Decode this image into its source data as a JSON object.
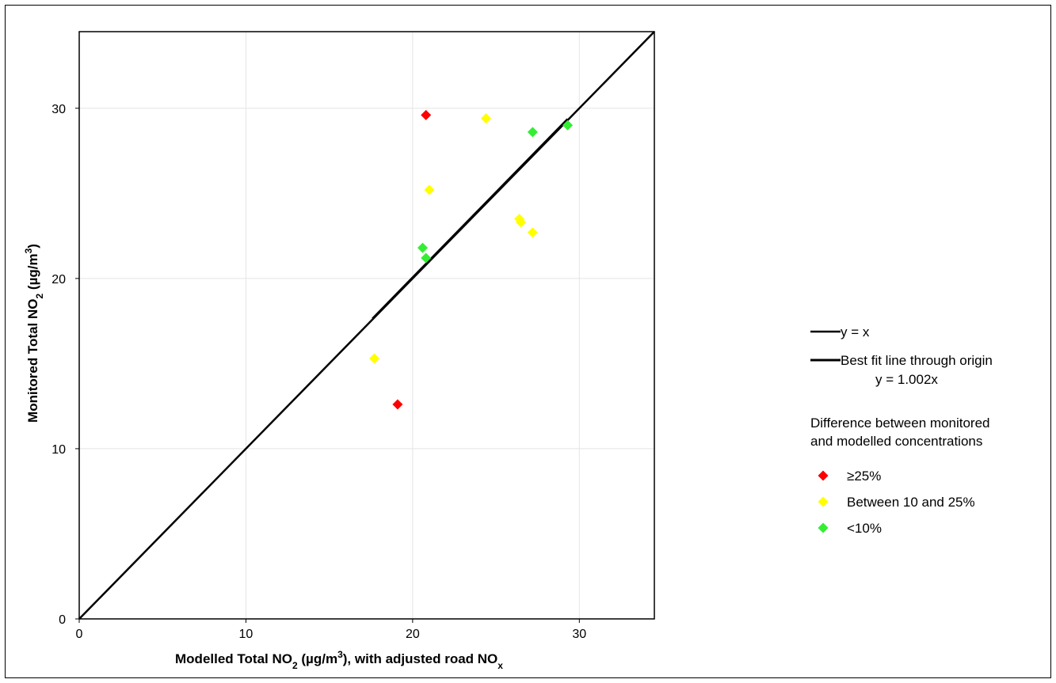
{
  "chart_data": {
    "type": "scatter",
    "title": "",
    "xlabel": {
      "main": "Modelled Total NO",
      "sub": "2",
      "mid": " (µg/m",
      "sup": "3",
      "tail": "), with adjusted road NO",
      "sub2": "x"
    },
    "ylabel": {
      "main": "Monitored Total NO",
      "sub": "2",
      "mid": " (µg/m",
      "sup": "3",
      "tail": ")"
    },
    "xlim": [
      0,
      34.5
    ],
    "ylim": [
      0,
      34.5
    ],
    "x_ticks": [
      0,
      10,
      20,
      30
    ],
    "y_ticks": [
      0,
      10,
      20,
      30
    ],
    "grid": true,
    "legend_position": "right",
    "lines": [
      {
        "name": "y = x",
        "from": [
          0,
          0
        ],
        "to": [
          34.5,
          34.5
        ],
        "color": "#000000"
      },
      {
        "name": "Best fit line through origin",
        "equation": "y = 1.002x",
        "from": [
          17.6,
          17.64
        ],
        "to": [
          29.3,
          29.36
        ],
        "color": "#000000"
      }
    ],
    "legend_heading": [
      "Difference between monitored",
      "and modelled concentrations"
    ],
    "series": [
      {
        "name": "≥25%",
        "color": "#ff0000",
        "points": [
          [
            20.8,
            29.6
          ],
          [
            19.1,
            12.6
          ]
        ]
      },
      {
        "name": "Between 10 and 25%",
        "color": "#ffff00",
        "points": [
          [
            24.4,
            29.4
          ],
          [
            21.0,
            25.2
          ],
          [
            26.4,
            23.5
          ],
          [
            26.5,
            23.3
          ],
          [
            27.2,
            22.7
          ],
          [
            17.7,
            15.3
          ]
        ]
      },
      {
        "name": "<10%",
        "color": "#33ee33",
        "points": [
          [
            27.2,
            28.6
          ],
          [
            29.3,
            29.0
          ],
          [
            20.6,
            21.8
          ],
          [
            20.8,
            21.2
          ]
        ]
      }
    ]
  }
}
